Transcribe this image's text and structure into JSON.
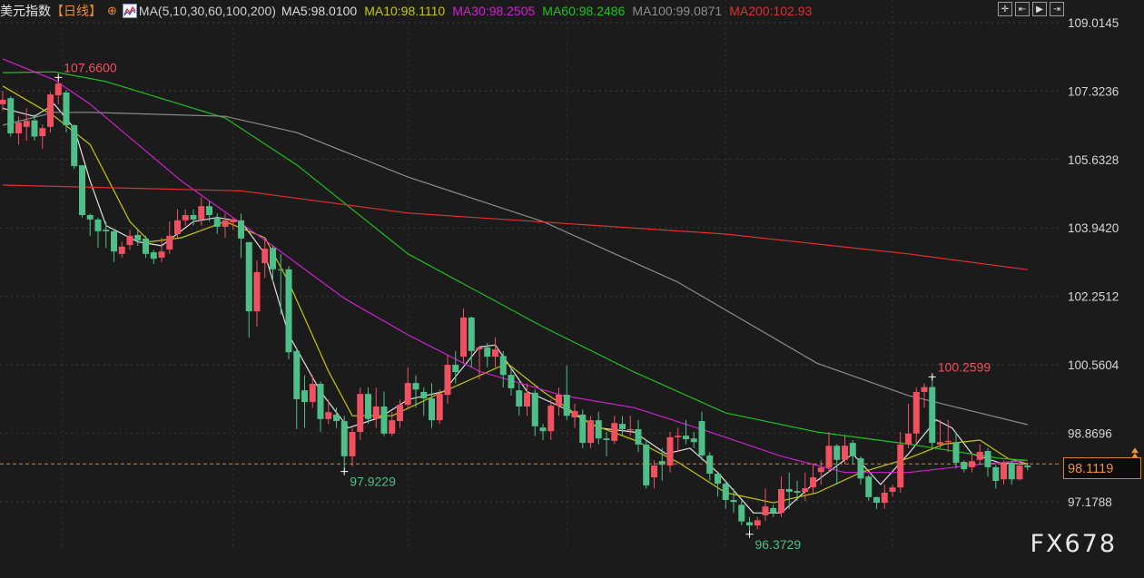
{
  "header": {
    "title": "美元指数",
    "period": "【日线】",
    "target_icon": "crosshair-circle-icon",
    "ma_icon": "indicator-chart-icon",
    "ma_spec": "MA(5,10,30,60,100,200)",
    "ma_values": [
      {
        "label": "MA5:98.0100",
        "color": "#dcdcdc"
      },
      {
        "label": "MA10:98.1110",
        "color": "#c8c800"
      },
      {
        "label": "MA30:98.2505",
        "color": "#d020d0"
      },
      {
        "label": "MA60:98.2486",
        "color": "#20c020"
      },
      {
        "label": "MA100:99.0871",
        "color": "#8c8c8c"
      },
      {
        "label": "MA200:102.93",
        "color": "#e03030"
      }
    ],
    "tools": [
      {
        "name": "crosshair-icon",
        "glyph": "✛"
      },
      {
        "name": "zoom-start-icon",
        "glyph": "⇤"
      },
      {
        "name": "play-icon",
        "glyph": "▶"
      },
      {
        "name": "jump-end-icon",
        "glyph": "⇥"
      }
    ]
  },
  "watermark": "FX678",
  "current_price": {
    "label": "98.1119",
    "value": 98.1119,
    "color": "#f09030"
  },
  "chart_data": {
    "type": "candlestick",
    "title": "",
    "ylim": [
      96.0,
      109.575
    ],
    "yticks": [
      "109.0145",
      "107.3236",
      "105.6328",
      "103.9420",
      "102.2512",
      "100.5604",
      "98.8696",
      "97.1788"
    ],
    "grid": true,
    "up_color": "#f0505f",
    "down_color": "#4fbf8a",
    "annotations": [
      {
        "label": "107.6600",
        "index": 7,
        "value": 107.66,
        "color": "#f0505f",
        "type": "high"
      },
      {
        "label": "97.9229",
        "index": 43,
        "value": 97.9229,
        "color": "#4fbf8a",
        "type": "low"
      },
      {
        "label": "96.3729",
        "index": 94,
        "value": 96.3729,
        "color": "#4fbf8a",
        "type": "low"
      },
      {
        "label": "100.2599",
        "index": 117,
        "value": 100.2599,
        "color": "#f0505f",
        "type": "high"
      }
    ],
    "candles_ohlc": [
      [
        107.0,
        107.33,
        106.84,
        107.11
      ],
      [
        107.15,
        107.2,
        106.2,
        106.28
      ],
      [
        106.28,
        106.7,
        106.0,
        106.55
      ],
      [
        106.44,
        106.9,
        106.1,
        106.59
      ],
      [
        106.6,
        106.75,
        106.1,
        106.2
      ],
      [
        106.21,
        106.5,
        105.9,
        106.41
      ],
      [
        106.44,
        107.3,
        106.3,
        107.24
      ],
      [
        107.22,
        107.66,
        107.0,
        107.51
      ],
      [
        107.29,
        107.35,
        106.3,
        106.48
      ],
      [
        106.48,
        106.5,
        105.4,
        105.47
      ],
      [
        105.49,
        105.5,
        104.2,
        104.26
      ],
      [
        104.26,
        104.3,
        103.75,
        104.15
      ],
      [
        104.15,
        104.2,
        103.45,
        103.86
      ],
      [
        103.9,
        104.1,
        103.45,
        103.86
      ],
      [
        103.86,
        103.9,
        103.1,
        103.36
      ],
      [
        103.3,
        103.6,
        103.2,
        103.48
      ],
      [
        103.52,
        103.9,
        103.4,
        103.75
      ],
      [
        103.77,
        103.9,
        103.5,
        103.63
      ],
      [
        103.68,
        103.75,
        103.2,
        103.3
      ],
      [
        103.34,
        103.4,
        103.05,
        103.18
      ],
      [
        103.21,
        103.7,
        103.1,
        103.36
      ],
      [
        103.41,
        104.1,
        103.3,
        103.75
      ],
      [
        103.79,
        104.4,
        103.7,
        104.13
      ],
      [
        104.13,
        104.4,
        104.0,
        104.26
      ],
      [
        104.26,
        104.4,
        104.0,
        104.15
      ],
      [
        104.15,
        104.7,
        104.0,
        104.48
      ],
      [
        104.48,
        104.6,
        104.1,
        104.26
      ],
      [
        104.19,
        104.3,
        103.8,
        103.97
      ],
      [
        103.97,
        104.3,
        103.7,
        104.13
      ],
      [
        104.08,
        104.2,
        103.9,
        104.15
      ],
      [
        104.13,
        104.3,
        103.2,
        103.68
      ],
      [
        103.59,
        103.6,
        101.23,
        101.88
      ],
      [
        101.88,
        103.14,
        101.5,
        102.85
      ],
      [
        103.07,
        103.7,
        102.7,
        103.43
      ],
      [
        103.45,
        103.5,
        102.6,
        102.92
      ],
      [
        102.92,
        103.3,
        101.8,
        102.9
      ],
      [
        102.92,
        103.0,
        100.7,
        100.87
      ],
      [
        100.9,
        101.0,
        98.97,
        99.71
      ],
      [
        99.93,
        100.3,
        99.0,
        99.64
      ],
      [
        99.64,
        100.3,
        99.5,
        100.09
      ],
      [
        100.09,
        100.15,
        98.9,
        99.22
      ],
      [
        99.22,
        99.7,
        99.1,
        99.39
      ],
      [
        99.33,
        99.5,
        99.0,
        99.17
      ],
      [
        99.17,
        99.3,
        97.92,
        98.3
      ],
      [
        98.3,
        99.0,
        98.05,
        98.9
      ],
      [
        98.9,
        100.0,
        98.7,
        99.84
      ],
      [
        99.84,
        100.0,
        99.1,
        99.22
      ],
      [
        99.22,
        100.0,
        99.0,
        99.53
      ],
      [
        99.53,
        99.9,
        98.8,
        98.86
      ],
      [
        98.86,
        99.4,
        98.8,
        99.19
      ],
      [
        99.17,
        99.7,
        99.0,
        99.57
      ],
      [
        99.57,
        100.5,
        99.5,
        100.11
      ],
      [
        100.11,
        100.3,
        99.5,
        99.95
      ],
      [
        99.89,
        100.0,
        99.3,
        99.73
      ],
      [
        99.73,
        100.1,
        99.0,
        99.19
      ],
      [
        99.19,
        99.95,
        99.1,
        99.84
      ],
      [
        99.82,
        100.8,
        99.6,
        100.56
      ],
      [
        100.56,
        100.9,
        100.1,
        100.38
      ],
      [
        100.76,
        101.95,
        100.6,
        101.73
      ],
      [
        101.73,
        101.75,
        100.5,
        100.9
      ],
      [
        100.94,
        101.0,
        100.2,
        100.99
      ],
      [
        100.99,
        101.1,
        100.5,
        100.76
      ],
      [
        100.76,
        101.24,
        100.5,
        100.94
      ],
      [
        100.78,
        100.9,
        100.0,
        100.31
      ],
      [
        100.31,
        100.5,
        99.8,
        99.98
      ],
      [
        99.93,
        100.1,
        99.3,
        99.53
      ],
      [
        99.53,
        100.1,
        99.3,
        99.87
      ],
      [
        99.87,
        99.95,
        98.8,
        99.04
      ],
      [
        99.01,
        99.1,
        98.7,
        98.92
      ],
      [
        98.92,
        99.7,
        98.7,
        99.55
      ],
      [
        99.55,
        100.0,
        99.3,
        99.82
      ],
      [
        99.82,
        100.54,
        99.2,
        99.3
      ],
      [
        99.26,
        99.6,
        99.0,
        99.42
      ],
      [
        99.33,
        99.45,
        98.5,
        98.63
      ],
      [
        98.63,
        99.3,
        98.5,
        99.19
      ],
      [
        99.19,
        99.4,
        98.6,
        98.74
      ],
      [
        98.74,
        98.9,
        98.3,
        98.7
      ],
      [
        98.68,
        99.3,
        98.6,
        99.12
      ],
      [
        99.1,
        99.3,
        98.8,
        98.97
      ],
      [
        98.94,
        99.3,
        98.8,
        98.97
      ],
      [
        98.97,
        99.2,
        98.4,
        98.59
      ],
      [
        98.59,
        98.7,
        97.5,
        97.58
      ],
      [
        97.78,
        98.2,
        97.5,
        98.07
      ],
      [
        98.18,
        98.5,
        97.7,
        98.09
      ],
      [
        98.07,
        98.9,
        97.9,
        98.77
      ],
      [
        98.77,
        99.0,
        98.4,
        98.81
      ],
      [
        98.81,
        99.2,
        98.6,
        98.72
      ],
      [
        98.74,
        98.9,
        98.5,
        98.65
      ],
      [
        99.17,
        99.4,
        98.2,
        98.32
      ],
      [
        98.32,
        98.4,
        97.7,
        97.87
      ],
      [
        97.87,
        97.9,
        97.3,
        97.62
      ],
      [
        97.62,
        97.7,
        97.0,
        97.22
      ],
      [
        97.22,
        97.5,
        96.9,
        97.17
      ],
      [
        97.1,
        97.2,
        96.6,
        96.69
      ],
      [
        96.67,
        96.8,
        96.37,
        96.59
      ],
      [
        96.59,
        96.8,
        96.5,
        96.72
      ],
      [
        96.84,
        97.5,
        96.7,
        97.06
      ],
      [
        97.02,
        97.1,
        96.8,
        96.9
      ],
      [
        96.9,
        97.8,
        96.8,
        97.49
      ],
      [
        97.49,
        97.9,
        97.0,
        97.42
      ],
      [
        97.44,
        97.7,
        97.2,
        97.4
      ],
      [
        97.42,
        97.9,
        97.2,
        97.51
      ],
      [
        97.53,
        98.1,
        97.4,
        97.78
      ],
      [
        97.91,
        98.2,
        97.6,
        98.02
      ],
      [
        98.02,
        98.9,
        97.9,
        98.56
      ],
      [
        98.56,
        98.6,
        97.6,
        98.21
      ],
      [
        98.21,
        98.8,
        98.1,
        98.56
      ],
      [
        98.63,
        98.7,
        98.1,
        98.3
      ],
      [
        98.25,
        98.3,
        97.6,
        97.75
      ],
      [
        97.8,
        97.85,
        97.2,
        97.29
      ],
      [
        97.29,
        97.3,
        97.0,
        97.15
      ],
      [
        97.15,
        97.6,
        97.0,
        97.4
      ],
      [
        97.42,
        97.6,
        97.3,
        97.53
      ],
      [
        97.53,
        98.9,
        97.4,
        98.59
      ],
      [
        98.59,
        99.6,
        98.5,
        98.86
      ],
      [
        98.86,
        100.0,
        98.6,
        99.89
      ],
      [
        99.89,
        100.1,
        99.5,
        100.01
      ],
      [
        100.01,
        100.26,
        98.5,
        98.63
      ],
      [
        98.59,
        99.2,
        98.5,
        98.65
      ],
      [
        98.65,
        99.2,
        98.4,
        98.68
      ],
      [
        98.65,
        98.9,
        98.0,
        98.14
      ],
      [
        98.16,
        98.2,
        97.9,
        97.98
      ],
      [
        98.03,
        98.4,
        97.9,
        98.18
      ],
      [
        98.21,
        98.6,
        98.1,
        98.41
      ],
      [
        98.43,
        98.5,
        97.8,
        98.03
      ],
      [
        98.03,
        98.1,
        97.5,
        97.69
      ],
      [
        97.73,
        98.2,
        97.6,
        98.14
      ],
      [
        98.14,
        98.2,
        97.6,
        97.73
      ],
      [
        97.73,
        98.2,
        97.7,
        98.07
      ],
      [
        98.07,
        98.15,
        97.95,
        98.03
      ]
    ],
    "ma_series": [
      {
        "name": "MA5",
        "color": "#e0e0e0",
        "points": [
          [
            0,
            106.9
          ],
          [
            4,
            106.7
          ],
          [
            6.5,
            107.0
          ],
          [
            9,
            106.4
          ],
          [
            11,
            105.1
          ],
          [
            13,
            104.0
          ],
          [
            17,
            103.6
          ],
          [
            20,
            103.5
          ],
          [
            24,
            104.1
          ],
          [
            27,
            104.2
          ],
          [
            30,
            104.1
          ],
          [
            33,
            103.3
          ],
          [
            36,
            101.3
          ],
          [
            40,
            99.9
          ],
          [
            43.5,
            99.0
          ],
          [
            47.5,
            99.26
          ],
          [
            51,
            99.7
          ],
          [
            55.5,
            99.9
          ],
          [
            60,
            101.0
          ],
          [
            62,
            101.05
          ],
          [
            66,
            99.9
          ],
          [
            70.5,
            99.5
          ],
          [
            75,
            99.0
          ],
          [
            79.5,
            98.9
          ],
          [
            83.5,
            98.36
          ],
          [
            86.5,
            98.5
          ],
          [
            90,
            97.9
          ],
          [
            94.5,
            96.9
          ],
          [
            98,
            96.9
          ],
          [
            102.5,
            97.7
          ],
          [
            107,
            98.36
          ],
          [
            110.5,
            97.6
          ],
          [
            114,
            98.36
          ],
          [
            117.5,
            99.2
          ],
          [
            119.5,
            99.0
          ],
          [
            122,
            98.36
          ],
          [
            125.5,
            98.14
          ],
          [
            129,
            98.1
          ]
        ]
      },
      {
        "name": "MA10",
        "color": "#c8c800",
        "points": [
          [
            0,
            107.45
          ],
          [
            6.5,
            106.7
          ],
          [
            11,
            106.0
          ],
          [
            16,
            104.1
          ],
          [
            18.5,
            103.6
          ],
          [
            22.5,
            103.7
          ],
          [
            28,
            104.1
          ],
          [
            33,
            103.7
          ],
          [
            36,
            102.6
          ],
          [
            41,
            100.4
          ],
          [
            44,
            99.3
          ],
          [
            49,
            99.3
          ],
          [
            55.5,
            99.9
          ],
          [
            63.5,
            100.6
          ],
          [
            68,
            99.9
          ],
          [
            74,
            99.1
          ],
          [
            79.5,
            98.7
          ],
          [
            85,
            98.15
          ],
          [
            91,
            97.4
          ],
          [
            97,
            97.15
          ],
          [
            102.5,
            97.4
          ],
          [
            108,
            97.9
          ],
          [
            114,
            98.25
          ],
          [
            118.5,
            98.6
          ],
          [
            123,
            98.7
          ],
          [
            126.5,
            98.25
          ],
          [
            129,
            98.11
          ]
        ]
      },
      {
        "name": "MA30",
        "color": "#d020d0",
        "points": [
          [
            0,
            108.12
          ],
          [
            6.5,
            107.6
          ],
          [
            11,
            107.0
          ],
          [
            22.5,
            105.1
          ],
          [
            34,
            103.5
          ],
          [
            43,
            102.2
          ],
          [
            51,
            101.3
          ],
          [
            60,
            100.4
          ],
          [
            70.5,
            99.8
          ],
          [
            79.5,
            99.5
          ],
          [
            89,
            98.9
          ],
          [
            98,
            98.3
          ],
          [
            106,
            97.9
          ],
          [
            114,
            97.9
          ],
          [
            123,
            98.1
          ],
          [
            129,
            98.2
          ]
        ]
      },
      {
        "name": "MA60",
        "color": "#20c020",
        "points": [
          [
            0,
            107.78
          ],
          [
            6.5,
            107.8
          ],
          [
            13,
            107.56
          ],
          [
            28,
            106.66
          ],
          [
            37,
            105.5
          ],
          [
            51,
            103.3
          ],
          [
            68,
            101.5
          ],
          [
            79.5,
            100.38
          ],
          [
            91,
            99.37
          ],
          [
            102.5,
            98.9
          ],
          [
            114,
            98.6
          ],
          [
            125.5,
            98.25
          ],
          [
            129,
            98.2
          ]
        ]
      },
      {
        "name": "MA100",
        "color": "#8c8c8c",
        "points": [
          [
            0,
            106.48
          ],
          [
            6.5,
            106.8
          ],
          [
            11,
            106.8
          ],
          [
            28,
            106.7
          ],
          [
            37,
            106.3
          ],
          [
            51,
            105.2
          ],
          [
            68,
            104.1
          ],
          [
            85,
            102.6
          ],
          [
            102.5,
            100.6
          ],
          [
            114,
            99.8
          ],
          [
            129,
            99.08
          ]
        ]
      },
      {
        "name": "MA200",
        "color": "#e03030",
        "points": [
          [
            0,
            105.0
          ],
          [
            30,
            104.86
          ],
          [
            51,
            104.31
          ],
          [
            91,
            103.79
          ],
          [
            114,
            103.3
          ],
          [
            129,
            102.91
          ]
        ]
      }
    ]
  }
}
